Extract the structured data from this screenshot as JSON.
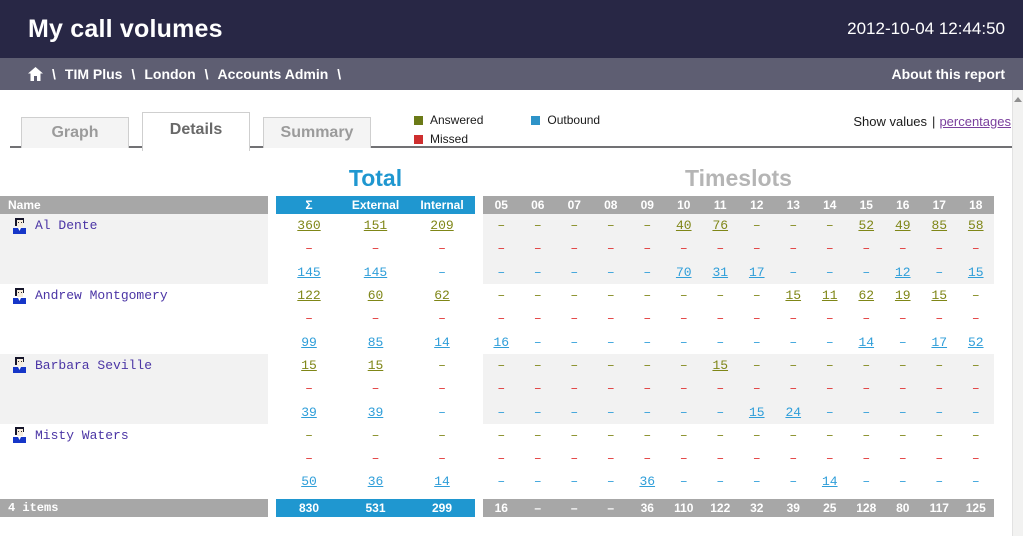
{
  "header": {
    "title": "My call volumes",
    "timestamp": "2012-10-04 12:44:50"
  },
  "breadcrumb": {
    "separator": "\\",
    "items": [
      "TIM Plus",
      "London",
      "Accounts Admin"
    ],
    "about_link": "About this report"
  },
  "tabs": [
    {
      "label": "Graph",
      "active": false
    },
    {
      "label": "Details",
      "active": true
    },
    {
      "label": "Summary",
      "active": false
    }
  ],
  "legend": [
    {
      "label": "Answered",
      "color": "#6b7a17"
    },
    {
      "label": "Outbound",
      "color": "#2e93c8"
    },
    {
      "label": "Missed",
      "color": "#ce2f2f"
    }
  ],
  "display_toggle": {
    "prefix": "Show values",
    "separator": "|",
    "link": "percentages"
  },
  "table": {
    "total_title": "Total",
    "timeslots_title": "Timeslots",
    "name_header": "Name",
    "dash": "–",
    "total_columns": [
      "Σ",
      "External",
      "Internal"
    ],
    "timeslot_columns": [
      "05",
      "06",
      "07",
      "08",
      "09",
      "10",
      "11",
      "12",
      "13",
      "14",
      "15",
      "16",
      "17",
      "18"
    ],
    "rows": [
      {
        "name": "Al Dente",
        "series": [
          {
            "type": "answered",
            "totals": [
              "360",
              "151",
              "209"
            ],
            "slots": [
              "–",
              "–",
              "–",
              "–",
              "–",
              "40",
              "76",
              "–",
              "–",
              "–",
              "52",
              "49",
              "85",
              "58"
            ]
          },
          {
            "type": "missed",
            "totals": [
              "–",
              "–",
              "–"
            ],
            "slots": [
              "–",
              "–",
              "–",
              "–",
              "–",
              "–",
              "–",
              "–",
              "–",
              "–",
              "–",
              "–",
              "–",
              "–"
            ]
          },
          {
            "type": "outbound",
            "totals": [
              "145",
              "145",
              "–"
            ],
            "slots": [
              "–",
              "–",
              "–",
              "–",
              "–",
              "70",
              "31",
              "17",
              "–",
              "–",
              "–",
              "12",
              "–",
              "15"
            ]
          }
        ]
      },
      {
        "name": "Andrew Montgomery",
        "series": [
          {
            "type": "answered",
            "totals": [
              "122",
              "60",
              "62"
            ],
            "slots": [
              "–",
              "–",
              "–",
              "–",
              "–",
              "–",
              "–",
              "–",
              "15",
              "11",
              "62",
              "19",
              "15",
              "–"
            ]
          },
          {
            "type": "missed",
            "totals": [
              "–",
              "–",
              "–"
            ],
            "slots": [
              "–",
              "–",
              "–",
              "–",
              "–",
              "–",
              "–",
              "–",
              "–",
              "–",
              "–",
              "–",
              "–",
              "–"
            ]
          },
          {
            "type": "outbound",
            "totals": [
              "99",
              "85",
              "14"
            ],
            "slots": [
              "16",
              "–",
              "–",
              "–",
              "–",
              "–",
              "–",
              "–",
              "–",
              "–",
              "14",
              "–",
              "17",
              "52"
            ]
          }
        ]
      },
      {
        "name": "Barbara Seville",
        "series": [
          {
            "type": "answered",
            "totals": [
              "15",
              "15",
              "–"
            ],
            "slots": [
              "–",
              "–",
              "–",
              "–",
              "–",
              "–",
              "15",
              "–",
              "–",
              "–",
              "–",
              "–",
              "–",
              "–"
            ]
          },
          {
            "type": "missed",
            "totals": [
              "–",
              "–",
              "–"
            ],
            "slots": [
              "–",
              "–",
              "–",
              "–",
              "–",
              "–",
              "–",
              "–",
              "–",
              "–",
              "–",
              "–",
              "–",
              "–"
            ]
          },
          {
            "type": "outbound",
            "totals": [
              "39",
              "39",
              "–"
            ],
            "slots": [
              "–",
              "–",
              "–",
              "–",
              "–",
              "–",
              "–",
              "15",
              "24",
              "–",
              "–",
              "–",
              "–",
              "–"
            ]
          }
        ]
      },
      {
        "name": "Misty Waters",
        "series": [
          {
            "type": "answered",
            "totals": [
              "–",
              "–",
              "–"
            ],
            "slots": [
              "–",
              "–",
              "–",
              "–",
              "–",
              "–",
              "–",
              "–",
              "–",
              "–",
              "–",
              "–",
              "–",
              "–"
            ]
          },
          {
            "type": "missed",
            "totals": [
              "–",
              "–",
              "–"
            ],
            "slots": [
              "–",
              "–",
              "–",
              "–",
              "–",
              "–",
              "–",
              "–",
              "–",
              "–",
              "–",
              "–",
              "–",
              "–"
            ]
          },
          {
            "type": "outbound",
            "totals": [
              "50",
              "36",
              "14"
            ],
            "slots": [
              "–",
              "–",
              "–",
              "–",
              "36",
              "–",
              "–",
              "–",
              "–",
              "14",
              "–",
              "–",
              "–",
              "–"
            ]
          }
        ]
      }
    ],
    "footer": {
      "items_label": "4 items",
      "totals": [
        "830",
        "531",
        "299"
      ],
      "slots": [
        "16",
        "–",
        "–",
        "–",
        "36",
        "110",
        "122",
        "32",
        "39",
        "25",
        "128",
        "80",
        "117",
        "125"
      ]
    }
  },
  "colors": {
    "header_bg": "#282745",
    "breadcrumb_bg": "#5e5e72",
    "accent_blue": "#1f97d0",
    "bar_gray": "#a7a7a7",
    "answered": "#7f8617",
    "missed": "#e03030",
    "outbound": "#2f9ed9",
    "name_text": "#4b35a5",
    "link_purple": "#7a3f9d"
  }
}
